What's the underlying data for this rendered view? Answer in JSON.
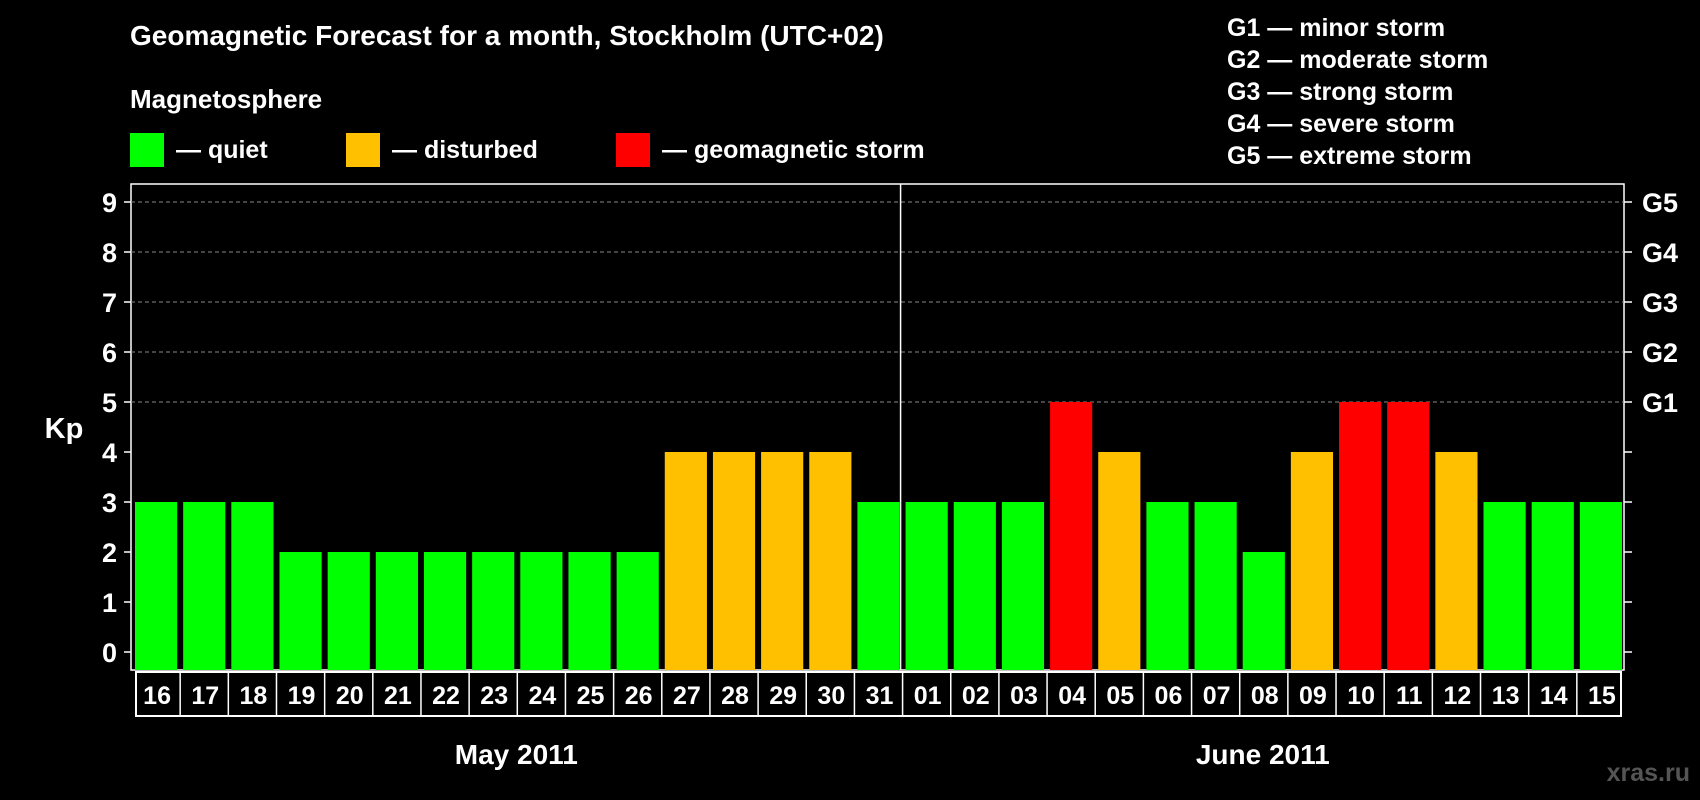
{
  "chart_data": {
    "type": "bar",
    "title": "Geomagnetic Forecast for a month, Stockholm (UTC+02)",
    "subtitle": "Magnetosphere",
    "ylabel": "Kp",
    "ylim": [
      0,
      9
    ],
    "yticks": [
      "0",
      "1",
      "2",
      "3",
      "4",
      "5",
      "6",
      "7",
      "8",
      "9"
    ],
    "right_ticks": [
      {
        "kp": 5,
        "label": "G1"
      },
      {
        "kp": 6,
        "label": "G2"
      },
      {
        "kp": 7,
        "label": "G3"
      },
      {
        "kp": 8,
        "label": "G4"
      },
      {
        "kp": 9,
        "label": "G5"
      }
    ],
    "grid": "dashed at Kp 5-9",
    "categories": [
      "16",
      "17",
      "18",
      "19",
      "20",
      "21",
      "22",
      "23",
      "24",
      "25",
      "26",
      "27",
      "28",
      "29",
      "30",
      "31",
      "01",
      "02",
      "03",
      "04",
      "05",
      "06",
      "07",
      "08",
      "09",
      "10",
      "11",
      "12",
      "13",
      "14",
      "15"
    ],
    "values": [
      3,
      3,
      3,
      2,
      2,
      2,
      2,
      2,
      2,
      2,
      2,
      4,
      4,
      4,
      4,
      3,
      3,
      3,
      3,
      5,
      4,
      3,
      3,
      2,
      4,
      5,
      5,
      4,
      3,
      3,
      3
    ],
    "months": [
      {
        "label": "May 2011",
        "days": 16
      },
      {
        "label": "June 2011",
        "days": 15
      }
    ],
    "legend": [
      {
        "label": "— quiet",
        "color": "#00ff00"
      },
      {
        "label": "— disturbed",
        "color": "#ffc000"
      },
      {
        "label": "— geomagnetic storm",
        "color": "#ff0000"
      }
    ],
    "color_rule": {
      "quiet_max": 3,
      "disturbed": 4,
      "storm_min": 5
    }
  },
  "storm_legend": [
    "G1 — minor storm",
    "G2 — moderate storm",
    "G3 — strong storm",
    "G4 — severe storm",
    "G5 — extreme storm"
  ],
  "watermark": "xras.ru"
}
